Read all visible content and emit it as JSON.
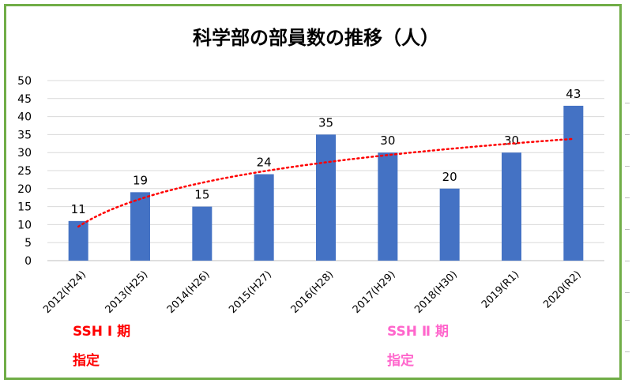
{
  "chart_data": {
    "type": "bar",
    "title": "科学部の部員数の推移（人）",
    "categories": [
      "2012(H24)",
      "2013(H25)",
      "2014(H26)",
      "2015(H27)",
      "2016(H28)",
      "2017(H29)",
      "2018(H30)",
      "2019(R1)",
      "2020(R2)"
    ],
    "values": [
      11,
      19,
      15,
      24,
      35,
      30,
      20,
      30,
      43
    ],
    "data_labels": [
      "11",
      "19",
      "15",
      "24",
      "35",
      "30",
      "20",
      "30",
      "43"
    ],
    "ylim": [
      0,
      50
    ],
    "yticks": [
      0,
      5,
      10,
      15,
      20,
      25,
      30,
      35,
      40,
      45,
      50
    ],
    "xlabel": "",
    "ylabel": "",
    "grid": true,
    "bar_color": "#4472c4",
    "trendline": {
      "type": "logarithmic",
      "style": "dotted",
      "color": "#ff0000"
    },
    "annotations": [
      {
        "line1": "SSH Ⅰ 期",
        "line2": "指定",
        "color": "#ff0000"
      },
      {
        "line1": "SSH Ⅱ 期",
        "line2": "指定",
        "color": "#ff66cc"
      }
    ]
  },
  "frame_color": "#70ad47"
}
